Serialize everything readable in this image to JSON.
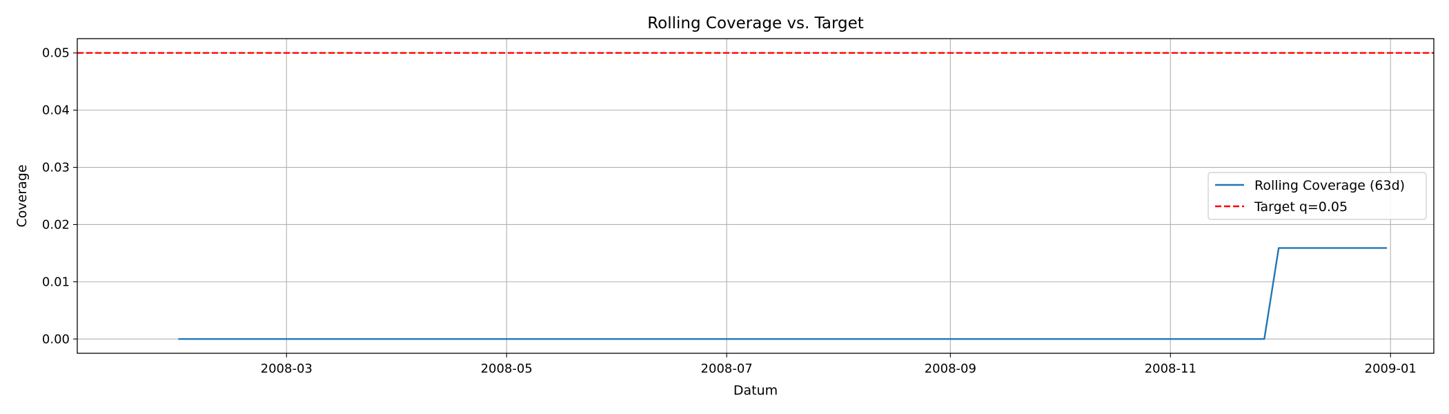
{
  "chart_data": {
    "type": "line",
    "title": "Rolling Coverage vs. Target",
    "xlabel": "Datum",
    "ylabel": "Coverage",
    "xlim": [
      "2008-01-03",
      "2009-01-13"
    ],
    "ylim": [
      -0.0025,
      0.0525
    ],
    "x_ticks": [
      "2008-03",
      "2008-05",
      "2008-07",
      "2008-09",
      "2008-11",
      "2009-01"
    ],
    "y_ticks": [
      0.0,
      0.01,
      0.02,
      0.03,
      0.04,
      0.05
    ],
    "y_tick_labels": [
      "0.00",
      "0.01",
      "0.02",
      "0.03",
      "0.04",
      "0.05"
    ],
    "grid": true,
    "legend_position": "center-right",
    "series": [
      {
        "name": "Rolling Coverage (63d)",
        "color": "#1f77b4",
        "style": "solid",
        "points": [
          {
            "x": "2008-01-31",
            "y": 0.0
          },
          {
            "x": "2008-11-27",
            "y": 0.0
          },
          {
            "x": "2008-12-01",
            "y": 0.0159
          },
          {
            "x": "2008-12-31",
            "y": 0.0159
          }
        ]
      },
      {
        "name": "Target q=0.05",
        "color": "#ff0000",
        "style": "dashed",
        "points": [
          {
            "x": "2008-01-03",
            "y": 0.05
          },
          {
            "x": "2009-01-13",
            "y": 0.05
          }
        ]
      }
    ]
  }
}
